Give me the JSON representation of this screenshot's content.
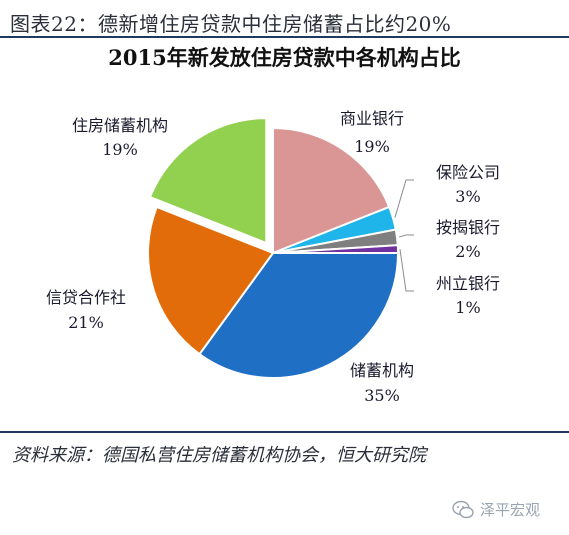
{
  "header": {
    "figure_title": "图表22：德新增住房贷款中住房储蓄占比约20%"
  },
  "footer": {
    "source": "资料来源：德国私营住房储蓄机构协会，恒大研究院",
    "watermark": "泽平宏观"
  },
  "chart_data": {
    "type": "pie",
    "title": "2015年新发放住房贷款中各机构占比",
    "slices": [
      {
        "label": "商业银行",
        "value": 19,
        "pct_label": "19%",
        "color": "#d99694"
      },
      {
        "label": "保险公司",
        "value": 3,
        "pct_label": "3%",
        "color": "#1fb5ea"
      },
      {
        "label": "按揭银行",
        "value": 2,
        "pct_label": "2%",
        "color": "#7f7f7f"
      },
      {
        "label": "州立银行",
        "value": 1,
        "pct_label": "1%",
        "color": "#7030a0"
      },
      {
        "label": "储蓄机构",
        "value": 35,
        "pct_label": "35%",
        "color": "#1f6fc5"
      },
      {
        "label": "信贷合作社",
        "value": 21,
        "pct_label": "21%",
        "color": "#e36c0a"
      },
      {
        "label": "住房储蓄机构",
        "value": 19,
        "pct_label": "19%",
        "color": "#92d050"
      }
    ]
  }
}
